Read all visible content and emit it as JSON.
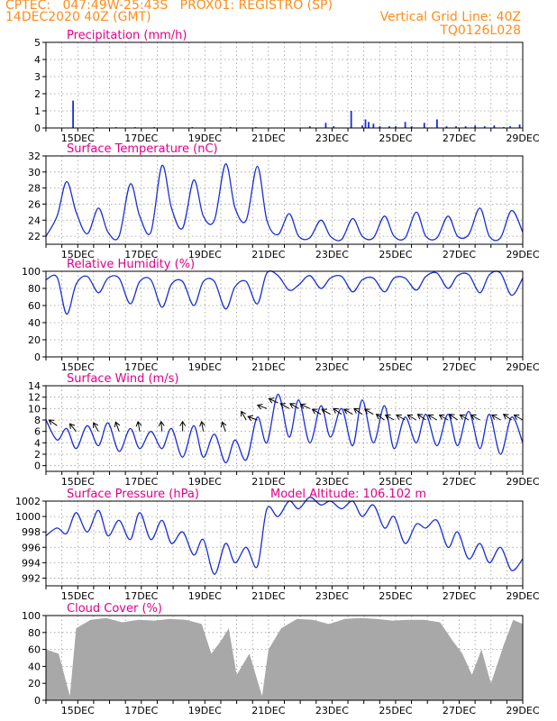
{
  "header": {
    "line1": "CPTEC:   047:49W-25:43S   PROX01: REGISTRO (SP)",
    "line2_left": "14DEC2020 40Z (GMT)",
    "line2_right": "Vertical Grid Line: 40Z",
    "line3_right": "TQ0126L028"
  },
  "colors": {
    "header": "#ff8c1a",
    "panel_title": "#e0008a",
    "series": "#1b2fd6",
    "cloud": "#a8a8a8",
    "grid": "#9a9a9a",
    "axis": "#000000"
  },
  "chart_data": [
    {
      "type": "bar",
      "title": "Precipitation (mm/h)",
      "x_ticks": [
        "15DEC",
        "17DEC",
        "19DEC",
        "21DEC",
        "23DEC",
        "25DEC",
        "27DEC",
        "29DEC"
      ],
      "x_tick_days": [
        15,
        17,
        19,
        21,
        23,
        25,
        27,
        29
      ],
      "xlim_days": [
        14.0,
        29.0
      ],
      "ylim": [
        0,
        5
      ],
      "y_ticks": [
        0,
        1,
        2,
        3,
        4,
        5
      ],
      "grid": true,
      "series": [
        {
          "x_days": [
            14.85,
            15.6,
            16.2,
            16.8,
            17.4,
            18.6,
            19.8,
            20.6,
            22.3,
            22.8,
            23.05,
            23.6,
            23.95,
            24.05,
            24.15,
            24.3,
            24.5,
            24.8,
            25.0,
            25.3,
            25.5,
            25.9,
            26.3,
            26.6,
            26.9,
            27.2,
            27.5,
            27.8,
            28.1,
            28.4,
            28.6,
            28.9
          ],
          "values": [
            1.6,
            0.05,
            0.05,
            0.05,
            0.05,
            0.05,
            0.05,
            0.05,
            0.1,
            0.3,
            0.1,
            1.0,
            0.15,
            0.5,
            0.35,
            0.25,
            0.1,
            0.1,
            0.1,
            0.35,
            0.1,
            0.3,
            0.5,
            0.1,
            0.1,
            0.1,
            0.15,
            0.1,
            0.15,
            0.05,
            0.1,
            0.2
          ]
        }
      ]
    },
    {
      "type": "line",
      "title": "Surface Temperature (nC)",
      "x_ticks": [
        "15DEC",
        "17DEC",
        "19DEC",
        "21DEC",
        "23DEC",
        "25DEC",
        "27DEC",
        "29DEC"
      ],
      "x_tick_days": [
        15,
        17,
        19,
        21,
        23,
        25,
        27,
        29
      ],
      "xlim_days": [
        14.0,
        29.0
      ],
      "ylim": [
        21,
        32
      ],
      "y_ticks": [
        22,
        24,
        26,
        28,
        30,
        32
      ],
      "grid": true,
      "series": [
        {
          "x_days": [
            14.0,
            14.35,
            14.65,
            14.95,
            15.3,
            15.65,
            15.95,
            16.3,
            16.65,
            16.95,
            17.3,
            17.65,
            17.95,
            18.3,
            18.65,
            18.95,
            19.3,
            19.65,
            19.95,
            20.3,
            20.65,
            20.95,
            21.3,
            21.65,
            21.95,
            22.3,
            22.65,
            22.95,
            23.3,
            23.65,
            23.95,
            24.3,
            24.65,
            24.95,
            25.3,
            25.65,
            25.95,
            26.3,
            26.65,
            26.95,
            27.3,
            27.65,
            27.95,
            28.3,
            28.65,
            29.0
          ],
          "values": [
            22.0,
            24.5,
            28.8,
            25.0,
            22.3,
            25.5,
            22.5,
            22.0,
            28.5,
            24.5,
            22.5,
            30.8,
            25.5,
            23.0,
            29.0,
            24.5,
            24.0,
            31.0,
            25.5,
            24.0,
            30.7,
            24.0,
            22.2,
            24.8,
            22.0,
            21.8,
            24.0,
            22.0,
            21.6,
            24.2,
            22.0,
            21.8,
            24.5,
            22.0,
            21.8,
            25.0,
            22.0,
            21.8,
            24.5,
            22.0,
            22.2,
            25.5,
            22.0,
            21.8,
            25.2,
            22.5
          ]
        }
      ]
    },
    {
      "type": "line",
      "title": "Relative Humidity (%)",
      "x_ticks": [
        "15DEC",
        "17DEC",
        "19DEC",
        "21DEC",
        "23DEC",
        "25DEC",
        "27DEC",
        "29DEC"
      ],
      "x_tick_days": [
        15,
        17,
        19,
        21,
        23,
        25,
        27,
        29
      ],
      "xlim_days": [
        14.0,
        29.0
      ],
      "ylim": [
        0,
        100
      ],
      "y_ticks": [
        0,
        20,
        40,
        60,
        80,
        100
      ],
      "grid": true,
      "series": [
        {
          "x_days": [
            14.0,
            14.35,
            14.65,
            14.95,
            15.3,
            15.65,
            15.95,
            16.3,
            16.65,
            16.95,
            17.3,
            17.65,
            17.95,
            18.3,
            18.65,
            18.95,
            19.3,
            19.65,
            19.95,
            20.3,
            20.65,
            20.95,
            21.3,
            21.65,
            21.95,
            22.3,
            22.65,
            22.95,
            23.3,
            23.65,
            23.95,
            24.3,
            24.65,
            24.95,
            25.3,
            25.65,
            25.95,
            26.3,
            26.65,
            26.95,
            27.3,
            27.65,
            27.95,
            28.3,
            28.65,
            29.0
          ],
          "values": [
            90,
            93,
            50,
            85,
            94,
            75,
            92,
            92,
            62,
            88,
            90,
            58,
            85,
            88,
            60,
            88,
            88,
            56,
            82,
            88,
            62,
            98,
            95,
            78,
            84,
            95,
            80,
            92,
            94,
            76,
            90,
            92,
            76,
            92,
            92,
            78,
            94,
            98,
            80,
            95,
            96,
            75,
            96,
            98,
            72,
            92
          ]
        }
      ]
    },
    {
      "type": "line",
      "title": "Surface Wind (m/s)",
      "x_ticks": [
        "15DEC",
        "17DEC",
        "19DEC",
        "21DEC",
        "23DEC",
        "25DEC",
        "27DEC",
        "29DEC"
      ],
      "x_tick_days": [
        15,
        17,
        19,
        21,
        23,
        25,
        27,
        29
      ],
      "xlim_days": [
        14.0,
        29.0
      ],
      "ylim": [
        -1,
        14
      ],
      "y_ticks": [
        0,
        2,
        4,
        6,
        8,
        10,
        12,
        14
      ],
      "grid": true,
      "series": [
        {
          "x_days": [
            14.0,
            14.35,
            14.65,
            14.95,
            15.3,
            15.65,
            15.95,
            16.3,
            16.65,
            16.95,
            17.3,
            17.65,
            17.95,
            18.3,
            18.65,
            18.95,
            19.3,
            19.65,
            19.95,
            20.3,
            20.65,
            20.95,
            21.3,
            21.65,
            21.95,
            22.3,
            22.65,
            22.95,
            23.3,
            23.65,
            23.95,
            24.3,
            24.65,
            24.95,
            25.3,
            25.65,
            25.95,
            26.3,
            26.65,
            26.95,
            27.3,
            27.65,
            27.95,
            28.3,
            28.65,
            29.0
          ],
          "values": [
            8.0,
            4.5,
            6.5,
            3.0,
            7.0,
            3.5,
            7.5,
            2.5,
            6.5,
            3.0,
            6.0,
            3.0,
            6.5,
            1.5,
            7.0,
            1.5,
            5.5,
            0.5,
            4.5,
            1.0,
            8.5,
            4.0,
            12.5,
            5.0,
            11.5,
            4.0,
            10.5,
            5.0,
            10.0,
            3.5,
            11.5,
            4.0,
            10.5,
            3.0,
            8.5,
            4.0,
            9.0,
            3.5,
            9.0,
            3.5,
            9.5,
            3.0,
            9.0,
            2.0,
            8.5,
            4.0
          ]
        }
      ],
      "wind_arrows": {
        "x_days": [
          14.35,
          14.95,
          15.65,
          16.3,
          16.95,
          17.65,
          18.3,
          18.95,
          19.65,
          20.3,
          20.65,
          20.95,
          21.3,
          21.65,
          21.95,
          22.3,
          22.65,
          22.95,
          23.3,
          23.65,
          23.95,
          24.3,
          24.65,
          24.95,
          25.3,
          25.65,
          25.95,
          26.3,
          26.65,
          26.95,
          27.3,
          27.65,
          28.3,
          28.65,
          29.0
        ],
        "speed": [
          7,
          6,
          6,
          6,
          6,
          6,
          6,
          6,
          6,
          8,
          8,
          10,
          11,
          10,
          10,
          10,
          9,
          9,
          9,
          9,
          9,
          9,
          8,
          8,
          8,
          8,
          8,
          8,
          8,
          8,
          8,
          8,
          8,
          8,
          8
        ],
        "dir_deg": [
          145,
          130,
          120,
          110,
          100,
          95,
          90,
          100,
          110,
          120,
          160,
          160,
          155,
          150,
          150,
          155,
          150,
          150,
          145,
          150,
          145,
          150,
          145,
          150,
          150,
          150,
          145,
          150,
          150,
          145,
          150,
          150,
          150,
          145,
          150
        ]
      }
    },
    {
      "type": "line",
      "title": "Surface Pressure (hPa)",
      "annotation": "Model Altitude: 106.102 m",
      "x_ticks": [
        "15DEC",
        "17DEC",
        "19DEC",
        "21DEC",
        "23DEC",
        "25DEC",
        "27DEC",
        "29DEC"
      ],
      "x_tick_days": [
        15,
        17,
        19,
        21,
        23,
        25,
        27,
        29
      ],
      "xlim_days": [
        14.0,
        29.0
      ],
      "ylim": [
        991,
        1002
      ],
      "y_ticks": [
        992,
        994,
        996,
        998,
        1000,
        1002
      ],
      "grid": true,
      "series": [
        {
          "x_days": [
            14.0,
            14.35,
            14.65,
            14.95,
            15.3,
            15.65,
            15.95,
            16.3,
            16.65,
            16.95,
            17.3,
            17.65,
            17.95,
            18.3,
            18.65,
            18.95,
            19.3,
            19.65,
            19.95,
            20.3,
            20.65,
            20.95,
            21.3,
            21.65,
            21.95,
            22.3,
            22.65,
            22.95,
            23.3,
            23.65,
            23.95,
            24.3,
            24.65,
            24.95,
            25.3,
            25.65,
            25.95,
            26.3,
            26.65,
            26.95,
            27.3,
            27.65,
            27.95,
            28.3,
            28.65,
            29.0
          ],
          "values": [
            997.5,
            998.5,
            997.8,
            1000.5,
            998.0,
            1000.8,
            997.5,
            999.5,
            997.0,
            1000.5,
            997.0,
            999.5,
            996.5,
            998.0,
            995.0,
            997.0,
            992.5,
            996.5,
            994.0,
            996.0,
            993.5,
            1001.0,
            1000.0,
            1002.0,
            1001.0,
            1002.5,
            1001.5,
            1002.0,
            1001.0,
            1002.0,
            1000.0,
            1001.5,
            998.5,
            1000.0,
            996.5,
            999.0,
            998.5,
            999.5,
            996.0,
            998.0,
            994.5,
            996.5,
            994.0,
            996.0,
            993.0,
            994.5
          ]
        }
      ]
    },
    {
      "type": "bar",
      "title": "Cloud Cover (%)",
      "x_ticks": [
        "15DEC",
        "17DEC",
        "19DEC",
        "21DEC",
        "23DEC",
        "25DEC",
        "27DEC",
        "29DEC"
      ],
      "x_tick_days": [
        15,
        17,
        19,
        21,
        23,
        25,
        27,
        29
      ],
      "xlim_days": [
        14.0,
        29.0
      ],
      "ylim": [
        0,
        100
      ],
      "y_ticks": [
        0,
        20,
        40,
        60,
        80,
        100
      ],
      "grid": true,
      "series": [
        {
          "x_days": [
            14.0,
            14.4,
            14.75,
            14.95,
            15.4,
            15.9,
            16.4,
            16.9,
            17.4,
            17.9,
            18.4,
            18.9,
            19.2,
            19.5,
            19.75,
            20.0,
            20.4,
            20.8,
            21.0,
            21.4,
            21.9,
            22.4,
            22.9,
            23.4,
            23.9,
            24.4,
            24.9,
            25.4,
            25.9,
            26.4,
            26.8,
            27.1,
            27.4,
            27.7,
            28.0,
            28.4,
            28.7,
            29.0
          ],
          "values": [
            60,
            55,
            5,
            85,
            95,
            97,
            92,
            95,
            94,
            96,
            95,
            90,
            55,
            70,
            85,
            30,
            55,
            5,
            60,
            85,
            96,
            95,
            90,
            96,
            97,
            96,
            94,
            95,
            95,
            92,
            70,
            55,
            30,
            60,
            20,
            65,
            95,
            90
          ]
        }
      ]
    }
  ]
}
